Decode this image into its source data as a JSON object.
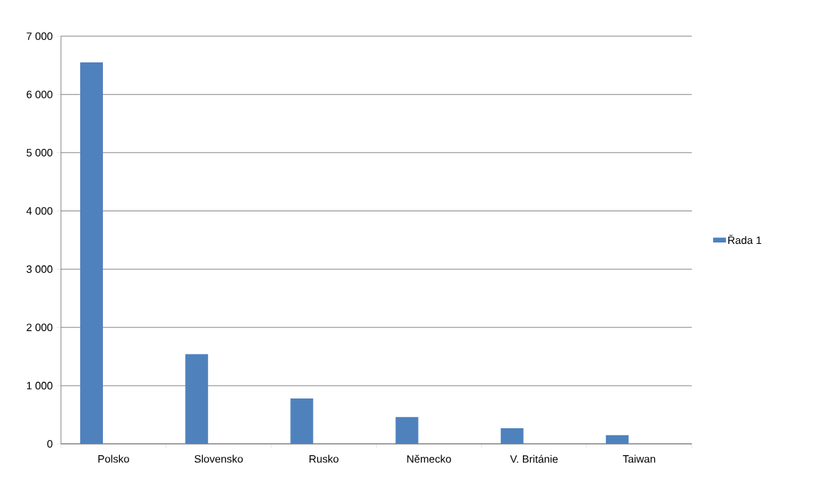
{
  "chart_data": {
    "type": "bar",
    "categories": [
      "Polsko",
      "Slovensko",
      "Rusko",
      "Německo",
      "V. Británie",
      "Taiwan"
    ],
    "series": [
      {
        "name": "Řada 1",
        "color": "#4f81bd",
        "values": [
          6550,
          1540,
          780,
          460,
          270,
          150
        ]
      }
    ],
    "ylim": [
      0,
      7000
    ],
    "yticks": [
      {
        "value": 0,
        "label": "0"
      },
      {
        "value": 1000,
        "label": "1 000"
      },
      {
        "value": 2000,
        "label": "2 000"
      },
      {
        "value": 3000,
        "label": "3 000"
      },
      {
        "value": 4000,
        "label": "4 000"
      },
      {
        "value": 5000,
        "label": "5 000"
      },
      {
        "value": 6000,
        "label": "6 000"
      },
      {
        "value": 7000,
        "label": "7 000"
      }
    ],
    "grid": "y",
    "legend": "right"
  }
}
